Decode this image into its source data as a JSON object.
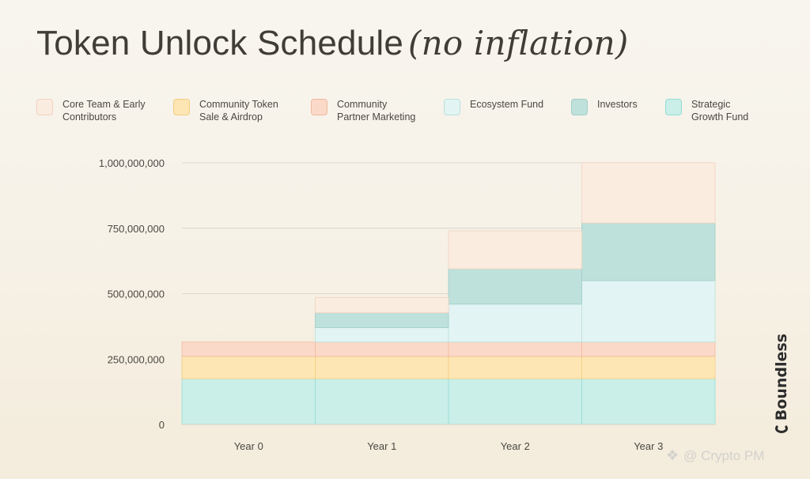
{
  "title": "Token Unlock Schedule",
  "subtitle": "(no inflation)",
  "brand": "Boundless",
  "watermark": {
    "text": "@ Crypto PM",
    "icon": "diamond-icon"
  },
  "legend": [
    {
      "label": "Core Team & Early\nContributors",
      "color": "#fbece0",
      "border": "#f1d2bc"
    },
    {
      "label": "Community Token\nSale & Airdrop",
      "color": "#fde6b4",
      "border": "#f4cd80"
    },
    {
      "label": "Community\nPartner Marketing",
      "color": "#fbd9c8",
      "border": "#f0b89e"
    },
    {
      "label": "Ecosystem Fund",
      "color": "#e2f4f3",
      "border": "#b9e1de"
    },
    {
      "label": "Investors",
      "color": "#bfe1db",
      "border": "#9fcec7"
    },
    {
      "label": "Strategic\nGrowth Fund",
      "color": "#c9efe8",
      "border": "#95ddd1"
    }
  ],
  "chart_data": {
    "type": "area",
    "stacked": true,
    "step": true,
    "categories": [
      "Year 0",
      "Year 1",
      "Year 2",
      "Year 3"
    ],
    "yticks": [
      "0",
      "250,000,000",
      "500,000,000",
      "750,000,000",
      "1,000,000,000"
    ],
    "ylim": [
      0,
      1000000000
    ],
    "grid": true,
    "series": [
      {
        "name": "Strategic Growth Fund",
        "color": "#c9efe8",
        "values": [
          175000000,
          175000000,
          175000000,
          175000000
        ]
      },
      {
        "name": "Community Token Sale & Airdrop",
        "color": "#fde6b4",
        "values": [
          85000000,
          85000000,
          85000000,
          85000000
        ]
      },
      {
        "name": "Community Partner Marketing",
        "color": "#fbd9c8",
        "values": [
          55000000,
          55000000,
          55000000,
          55000000
        ]
      },
      {
        "name": "Ecosystem Fund",
        "color": "#e2f4f3",
        "values": [
          0,
          55000000,
          145000000,
          235000000
        ]
      },
      {
        "name": "Investors",
        "color": "#bfe1db",
        "values": [
          0,
          57000000,
          135000000,
          220000000
        ]
      },
      {
        "name": "Core Team & Early Contributors",
        "color": "#fbece0",
        "values": [
          0,
          58000000,
          145000000,
          230000000
        ]
      }
    ]
  }
}
